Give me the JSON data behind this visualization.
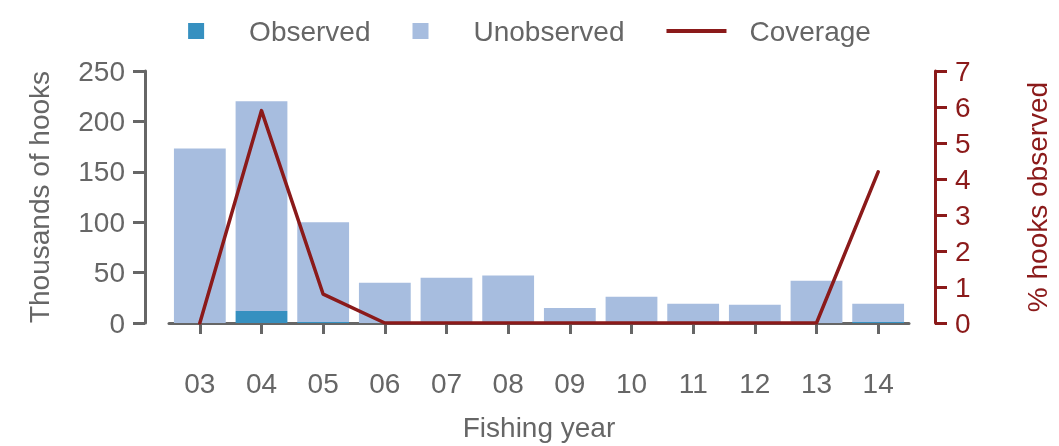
{
  "chart_data": {
    "type": "bar",
    "stacked": true,
    "categories": [
      "03",
      "04",
      "05",
      "06",
      "07",
      "08",
      "09",
      "10",
      "11",
      "12",
      "13",
      "14"
    ],
    "series": [
      {
        "name": "Observed",
        "color": "#3690c0",
        "values": [
          0,
          12,
          1,
          0,
          0,
          0,
          0,
          0,
          0,
          0,
          0,
          1
        ]
      },
      {
        "name": "Unobserved",
        "color": "#a7bddf",
        "values": [
          173,
          208,
          99,
          40,
          45,
          47,
          15,
          26,
          19,
          18,
          42,
          18
        ]
      },
      {
        "name": "Coverage",
        "type": "line",
        "axis": "y2",
        "color": "#8b1a1a",
        "values": [
          0,
          5.9,
          0.8,
          0,
          0,
          0,
          0,
          0,
          0,
          0,
          0,
          4.2
        ]
      }
    ],
    "xlabel": "Fishing year",
    "ylabel": "Thousands of hooks",
    "y2label": "% hooks observed",
    "ylim": [
      0,
      250
    ],
    "yticks": [
      0,
      50,
      100,
      150,
      200,
      250
    ],
    "y2lim": [
      0,
      7
    ],
    "y2ticks": [
      0,
      1,
      2,
      3,
      4,
      5,
      6,
      7
    ],
    "legend": "top",
    "grid": false,
    "marker": "none",
    "line_style": "solid"
  }
}
